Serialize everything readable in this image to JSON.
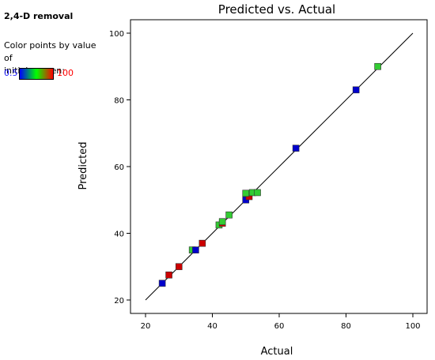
{
  "panel": {
    "response": "2,4-D removal",
    "color_note_line1": "Color points by value of",
    "color_note_line2": "initial concen:",
    "color_min": "0.5",
    "color_max": "100",
    "color_low": "#0000ff",
    "color_mid": "#00ff00",
    "color_high": "#ff0000"
  },
  "chart_data": {
    "type": "scatter",
    "title": "Predicted vs. Actual",
    "xlabel": "Actual",
    "ylabel": "Predicted",
    "xlim": [
      20,
      100
    ],
    "ylim": [
      20,
      100
    ],
    "xticks": [
      20,
      40,
      60,
      80,
      100
    ],
    "yticks": [
      20,
      40,
      60,
      80,
      100
    ],
    "grid": false,
    "reference_line": {
      "from": [
        20,
        20
      ],
      "to": [
        100,
        100
      ]
    },
    "points": [
      {
        "x": 25.0,
        "y": 25.0,
        "color": "#0000cc"
      },
      {
        "x": 27.0,
        "y": 27.5,
        "color": "#cc0000"
      },
      {
        "x": 30.0,
        "y": 30.0,
        "color": "#cc0000"
      },
      {
        "x": 34.0,
        "y": 35.0,
        "color": "#33cc33"
      },
      {
        "x": 35.0,
        "y": 35.0,
        "color": "#0000cc"
      },
      {
        "x": 37.0,
        "y": 37.0,
        "color": "#cc0000"
      },
      {
        "x": 42.0,
        "y": 42.5,
        "color": "#33cc33"
      },
      {
        "x": 43.0,
        "y": 43.0,
        "color": "#cc0000"
      },
      {
        "x": 43.0,
        "y": 43.5,
        "color": "#33cc33"
      },
      {
        "x": 45.0,
        "y": 45.5,
        "color": "#33cc33"
      },
      {
        "x": 50.0,
        "y": 50.0,
        "color": "#0000cc"
      },
      {
        "x": 51.0,
        "y": 51.0,
        "color": "#cc0000"
      },
      {
        "x": 50.0,
        "y": 52.0,
        "color": "#33cc33"
      },
      {
        "x": 52.0,
        "y": 52.2,
        "color": "#33cc33"
      },
      {
        "x": 53.5,
        "y": 52.2,
        "color": "#33cc33"
      },
      {
        "x": 65.0,
        "y": 65.5,
        "color": "#0000cc"
      },
      {
        "x": 83.0,
        "y": 83.0,
        "color": "#0000cc"
      },
      {
        "x": 89.5,
        "y": 90.0,
        "color": "#33cc33"
      }
    ]
  }
}
